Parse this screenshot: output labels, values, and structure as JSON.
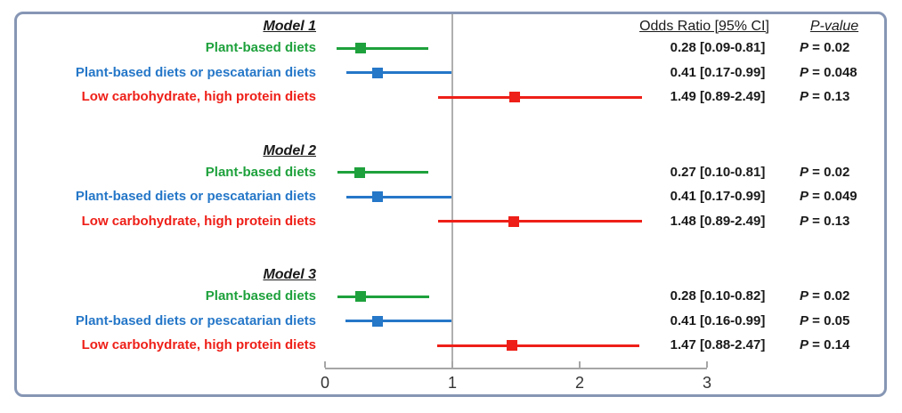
{
  "figure": {
    "border_color": "#8696b4",
    "background": "#ffffff",
    "text_color": "#1a1a1a",
    "axis_color": "#a6a6a6",
    "reference_line_color": "#b0b0b0"
  },
  "header": {
    "or_label": "Odds Ratio [95% CI]",
    "p_label": "P-value"
  },
  "chart_data": {
    "type": "forest",
    "xlabel": "",
    "ylabel": "",
    "x_axis": {
      "range": [
        0,
        3
      ],
      "ticks": [
        "0",
        "1",
        "2",
        "3"
      ],
      "tick_values": [
        0,
        1,
        2,
        3
      ],
      "reference_line": 1
    },
    "groups": [
      {
        "title": "Model 1",
        "rows": [
          {
            "label": "Plant-based diets",
            "color": "#1ea13c",
            "or": 0.28,
            "ci_low": 0.09,
            "ci_high": 0.81,
            "or_text": "0.28 [0.09-0.81]",
            "p_text": "P = 0.02"
          },
          {
            "label": "Plant-based diets or pescatarian diets",
            "color": "#2577c8",
            "or": 0.41,
            "ci_low": 0.17,
            "ci_high": 0.99,
            "or_text": "0.41 [0.17-0.99]",
            "p_text": "P = 0.048"
          },
          {
            "label": "Low carbohydrate, high protein diets",
            "color": "#ee1f18",
            "or": 1.49,
            "ci_low": 0.89,
            "ci_high": 2.49,
            "or_text": "1.49 [0.89-2.49]",
            "p_text": "P = 0.13"
          }
        ]
      },
      {
        "title": "Model 2",
        "rows": [
          {
            "label": "Plant-based diets",
            "color": "#1ea13c",
            "or": 0.27,
            "ci_low": 0.1,
            "ci_high": 0.81,
            "or_text": "0.27 [0.10-0.81]",
            "p_text": "P = 0.02"
          },
          {
            "label": "Plant-based diets or pescatarian diets",
            "color": "#2577c8",
            "or": 0.41,
            "ci_low": 0.17,
            "ci_high": 0.99,
            "or_text": "0.41 [0.17-0.99]",
            "p_text": "P = 0.049"
          },
          {
            "label": "Low carbohydrate, high protein diets",
            "color": "#ee1f18",
            "or": 1.48,
            "ci_low": 0.89,
            "ci_high": 2.49,
            "or_text": "1.48 [0.89-2.49]",
            "p_text": "P = 0.13"
          }
        ]
      },
      {
        "title": "Model 3",
        "rows": [
          {
            "label": "Plant-based diets",
            "color": "#1ea13c",
            "or": 0.28,
            "ci_low": 0.1,
            "ci_high": 0.82,
            "or_text": "0.28 [0.10-0.82]",
            "p_text": "P = 0.02"
          },
          {
            "label": "Plant-based diets or pescatarian diets",
            "color": "#2577c8",
            "or": 0.41,
            "ci_low": 0.16,
            "ci_high": 0.99,
            "or_text": "0.41 [0.16-0.99]",
            "p_text": "P = 0.05"
          },
          {
            "label": "Low carbohydrate, high protein diets",
            "color": "#ee1f18",
            "or": 1.47,
            "ci_low": 0.88,
            "ci_high": 2.47,
            "or_text": "1.47 [0.88-2.47]",
            "p_text": "P = 0.14"
          }
        ]
      }
    ]
  }
}
